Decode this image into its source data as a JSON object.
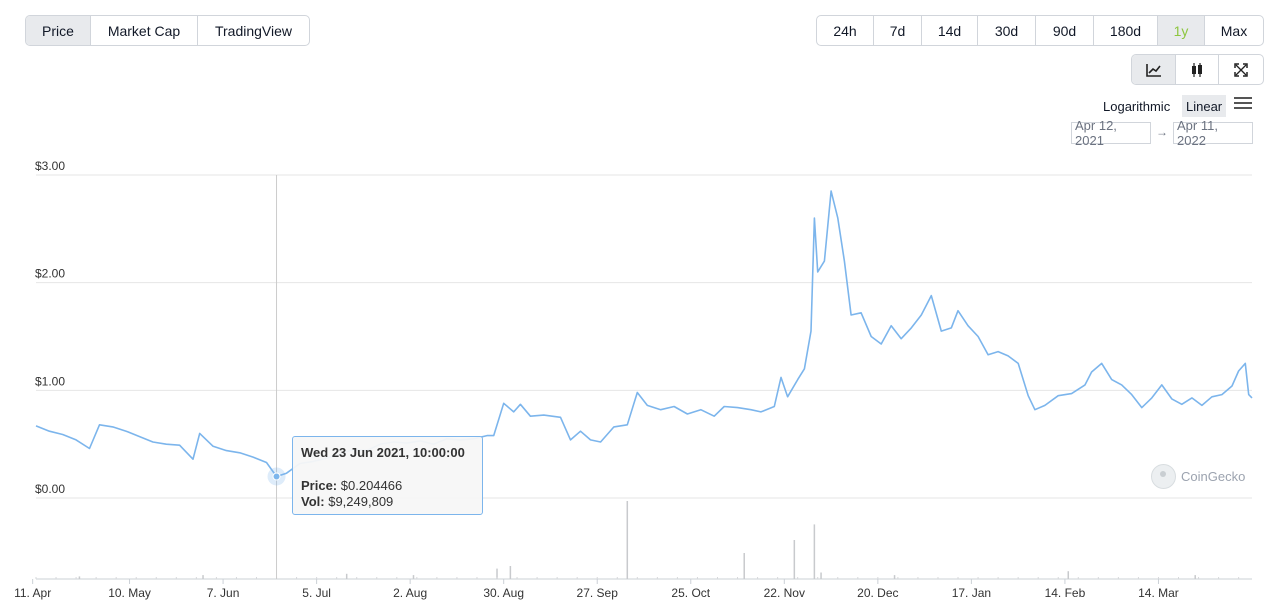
{
  "tabs": [
    "Price",
    "Market Cap",
    "TradingView"
  ],
  "active_tab": "Price",
  "ranges": [
    "24h",
    "7d",
    "14d",
    "30d",
    "90d",
    "180d",
    "1y",
    "Max"
  ],
  "active_range": "1y",
  "chart_type_icons": [
    "line-chart-icon",
    "candlestick-icon",
    "expand-icon"
  ],
  "scale": {
    "log_label": "Logarithmic",
    "linear_label": "Linear",
    "active": "Linear"
  },
  "date_range": {
    "from": "Apr 12, 2021",
    "arrow": "→",
    "to": "Apr 11, 2022"
  },
  "tooltip": {
    "date": "Wed 23 Jun 2021, 10:00:00",
    "price_label": "Price:",
    "price_value": "$0.204466",
    "vol_label": "Vol:",
    "vol_value": "$9,249,809"
  },
  "credit": "CoinGecko",
  "colors": {
    "line": "#7cb5ec",
    "volume": "#c8cacd",
    "grid": "#e6e6e6",
    "active_range": "#8dc63f"
  },
  "chart_data": {
    "type": "line",
    "title": "",
    "x_start": "2021-04-12",
    "x_end": "2022-04-11",
    "x_ticks": [
      "10. May",
      "7. Jun",
      "5. Jul",
      "2. Aug",
      "30. Aug",
      "27. Sep",
      "25. Oct",
      "22. Nov",
      "20. Dec",
      "17. Jan",
      "14. Feb",
      "14. Mar",
      "11. Apr"
    ],
    "y_ticks": [
      "$0.00",
      "$1.00",
      "$2.00",
      "$3.00"
    ],
    "ylim": [
      0,
      3
    ],
    "grid": true,
    "series": [
      {
        "values": [
          [
            "2021-04-12",
            0.67
          ],
          [
            "2021-04-16",
            0.62
          ],
          [
            "2021-04-20",
            0.59
          ],
          [
            "2021-04-24",
            0.54
          ],
          [
            "2021-04-28",
            0.46
          ],
          [
            "2021-05-01",
            0.68
          ],
          [
            "2021-05-05",
            0.66
          ],
          [
            "2021-05-09",
            0.62
          ],
          [
            "2021-05-13",
            0.57
          ],
          [
            "2021-05-17",
            0.52
          ],
          [
            "2021-05-21",
            0.5
          ],
          [
            "2021-05-25",
            0.49
          ],
          [
            "2021-05-29",
            0.36
          ],
          [
            "2021-05-31",
            0.6
          ],
          [
            "2021-06-04",
            0.48
          ],
          [
            "2021-06-08",
            0.44
          ],
          [
            "2021-06-12",
            0.42
          ],
          [
            "2021-06-16",
            0.38
          ],
          [
            "2021-06-20",
            0.33
          ],
          [
            "2021-06-23",
            0.2
          ],
          [
            "2021-06-26",
            0.23
          ],
          [
            "2021-06-30",
            0.32
          ],
          [
            "2021-07-04",
            0.34
          ],
          [
            "2021-07-08",
            0.37
          ],
          [
            "2021-07-12",
            0.41
          ],
          [
            "2021-07-16",
            0.45
          ],
          [
            "2021-07-20",
            0.44
          ],
          [
            "2021-07-24",
            0.5
          ],
          [
            "2021-07-28",
            0.52
          ],
          [
            "2021-08-01",
            0.51
          ],
          [
            "2021-08-05",
            0.53
          ],
          [
            "2021-08-09",
            0.5
          ],
          [
            "2021-08-13",
            0.55
          ],
          [
            "2021-08-17",
            0.54
          ],
          [
            "2021-08-21",
            0.55
          ],
          [
            "2021-08-25",
            0.58
          ],
          [
            "2021-08-27",
            0.58
          ],
          [
            "2021-08-30",
            0.88
          ],
          [
            "2021-09-02",
            0.8
          ],
          [
            "2021-09-04",
            0.87
          ],
          [
            "2021-09-07",
            0.76
          ],
          [
            "2021-09-11",
            0.77
          ],
          [
            "2021-09-16",
            0.75
          ],
          [
            "2021-09-19",
            0.54
          ],
          [
            "2021-09-22",
            0.62
          ],
          [
            "2021-09-25",
            0.54
          ],
          [
            "2021-09-28",
            0.52
          ],
          [
            "2021-10-02",
            0.66
          ],
          [
            "2021-10-06",
            0.68
          ],
          [
            "2021-10-09",
            0.98
          ],
          [
            "2021-10-12",
            0.86
          ],
          [
            "2021-10-16",
            0.82
          ],
          [
            "2021-10-20",
            0.85
          ],
          [
            "2021-10-24",
            0.78
          ],
          [
            "2021-10-28",
            0.82
          ],
          [
            "2021-11-01",
            0.76
          ],
          [
            "2021-11-04",
            0.85
          ],
          [
            "2021-11-08",
            0.84
          ],
          [
            "2021-11-12",
            0.82
          ],
          [
            "2021-11-15",
            0.8
          ],
          [
            "2021-11-19",
            0.85
          ],
          [
            "2021-11-21",
            1.12
          ],
          [
            "2021-11-23",
            0.94
          ],
          [
            "2021-11-26",
            1.1
          ],
          [
            "2021-11-28",
            1.2
          ],
          [
            "2021-11-30",
            1.55
          ],
          [
            "2021-12-01",
            2.6
          ],
          [
            "2021-12-02",
            2.1
          ],
          [
            "2021-12-04",
            2.2
          ],
          [
            "2021-12-06",
            2.85
          ],
          [
            "2021-12-08",
            2.6
          ],
          [
            "2021-12-10",
            2.2
          ],
          [
            "2021-12-12",
            1.7
          ],
          [
            "2021-12-15",
            1.72
          ],
          [
            "2021-12-18",
            1.5
          ],
          [
            "2021-12-21",
            1.43
          ],
          [
            "2021-12-24",
            1.6
          ],
          [
            "2021-12-27",
            1.48
          ],
          [
            "2021-12-30",
            1.58
          ],
          [
            "2022-01-02",
            1.7
          ],
          [
            "2022-01-05",
            1.88
          ],
          [
            "2022-01-08",
            1.55
          ],
          [
            "2022-01-11",
            1.58
          ],
          [
            "2022-01-13",
            1.74
          ],
          [
            "2022-01-16",
            1.6
          ],
          [
            "2022-01-19",
            1.5
          ],
          [
            "2022-01-22",
            1.33
          ],
          [
            "2022-01-25",
            1.36
          ],
          [
            "2022-01-28",
            1.32
          ],
          [
            "2022-01-31",
            1.25
          ],
          [
            "2022-02-03",
            0.95
          ],
          [
            "2022-02-05",
            0.82
          ],
          [
            "2022-02-08",
            0.86
          ],
          [
            "2022-02-12",
            0.95
          ],
          [
            "2022-02-16",
            0.97
          ],
          [
            "2022-02-20",
            1.05
          ],
          [
            "2022-02-22",
            1.17
          ],
          [
            "2022-02-25",
            1.25
          ],
          [
            "2022-02-28",
            1.1
          ],
          [
            "2022-03-03",
            1.05
          ],
          [
            "2022-03-06",
            0.96
          ],
          [
            "2022-03-09",
            0.84
          ],
          [
            "2022-03-12",
            0.93
          ],
          [
            "2022-03-15",
            1.05
          ],
          [
            "2022-03-18",
            0.92
          ],
          [
            "2022-03-21",
            0.87
          ],
          [
            "2022-03-24",
            0.93
          ],
          [
            "2022-03-27",
            0.86
          ],
          [
            "2022-03-30",
            0.94
          ],
          [
            "2022-04-02",
            0.96
          ],
          [
            "2022-04-05",
            1.04
          ],
          [
            "2022-04-07",
            1.18
          ],
          [
            "2022-04-09",
            1.25
          ],
          [
            "2022-04-10",
            0.96
          ],
          [
            "2022-04-11",
            0.93
          ]
        ]
      }
    ],
    "volume_spikes": [
      [
        "2021-04-25",
        0.02
      ],
      [
        "2021-06-01",
        0.03
      ],
      [
        "2021-07-14",
        0.04
      ],
      [
        "2021-08-03",
        0.03
      ],
      [
        "2021-08-28",
        0.08
      ],
      [
        "2021-09-01",
        0.1
      ],
      [
        "2021-10-06",
        0.6
      ],
      [
        "2021-11-10",
        0.2
      ],
      [
        "2021-11-25",
        0.3
      ],
      [
        "2021-12-01",
        0.42
      ],
      [
        "2021-12-03",
        0.05
      ],
      [
        "2021-12-25",
        0.03
      ],
      [
        "2022-02-15",
        0.06
      ],
      [
        "2022-03-25",
        0.03
      ]
    ],
    "highlight_date": "2021-06-23"
  }
}
